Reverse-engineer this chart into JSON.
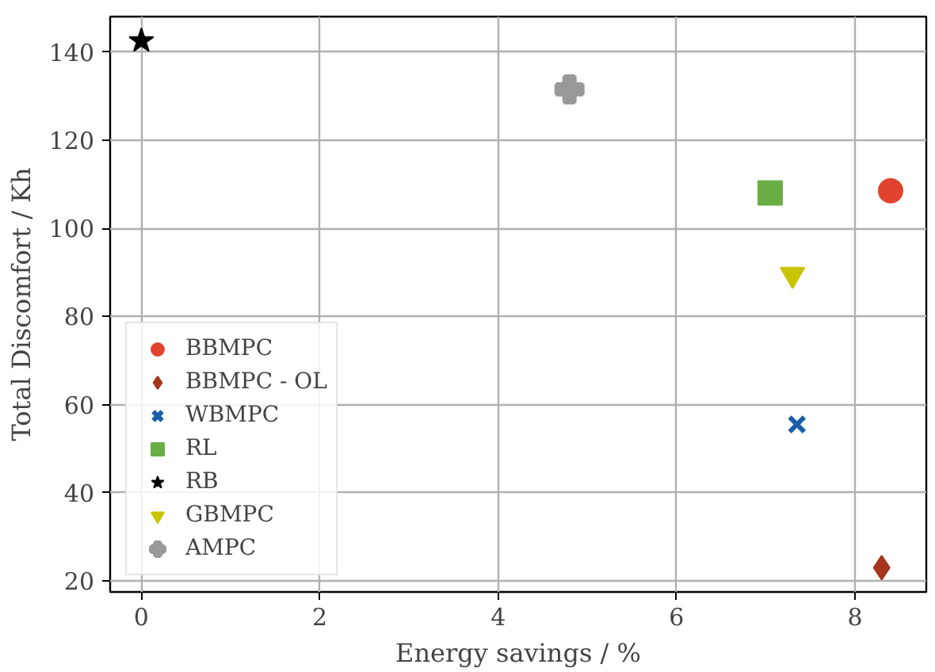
{
  "chart_data": {
    "type": "scatter",
    "xlabel": "Energy savings / %",
    "ylabel": "Total Discomfort / Kh",
    "xlim": [
      -0.35,
      8.8
    ],
    "ylim": [
      17.5,
      148
    ],
    "xticks": [
      0,
      2,
      4,
      6,
      8
    ],
    "yticks": [
      20,
      40,
      60,
      80,
      100,
      120,
      140
    ],
    "grid": true,
    "legend": "bottom left",
    "series": [
      {
        "name": "BBMPC",
        "color": "#e0432e",
        "marker": "circle",
        "x": [
          8.4
        ],
        "values": [
          108.5
        ]
      },
      {
        "name": "BBMPC - OL",
        "color": "#a5341c",
        "marker": "diamond",
        "x": [
          8.3
        ],
        "values": [
          23
        ]
      },
      {
        "name": "WBMPC",
        "color": "#1a5ea8",
        "marker": "x",
        "x": [
          7.35
        ],
        "values": [
          55.5
        ]
      },
      {
        "name": "RL",
        "color": "#6aad45",
        "marker": "square",
        "x": [
          7.05
        ],
        "values": [
          108
        ]
      },
      {
        "name": "RB",
        "color": "#000000",
        "marker": "star",
        "x": [
          0
        ],
        "values": [
          142.5
        ]
      },
      {
        "name": "GBMPC",
        "color": "#c9c400",
        "marker": "triangle",
        "x": [
          7.3
        ],
        "values": [
          89.5
        ]
      },
      {
        "name": "AMPC",
        "color": "#999999",
        "marker": "plus",
        "x": [
          4.8
        ],
        "values": [
          131.5
        ]
      }
    ]
  }
}
